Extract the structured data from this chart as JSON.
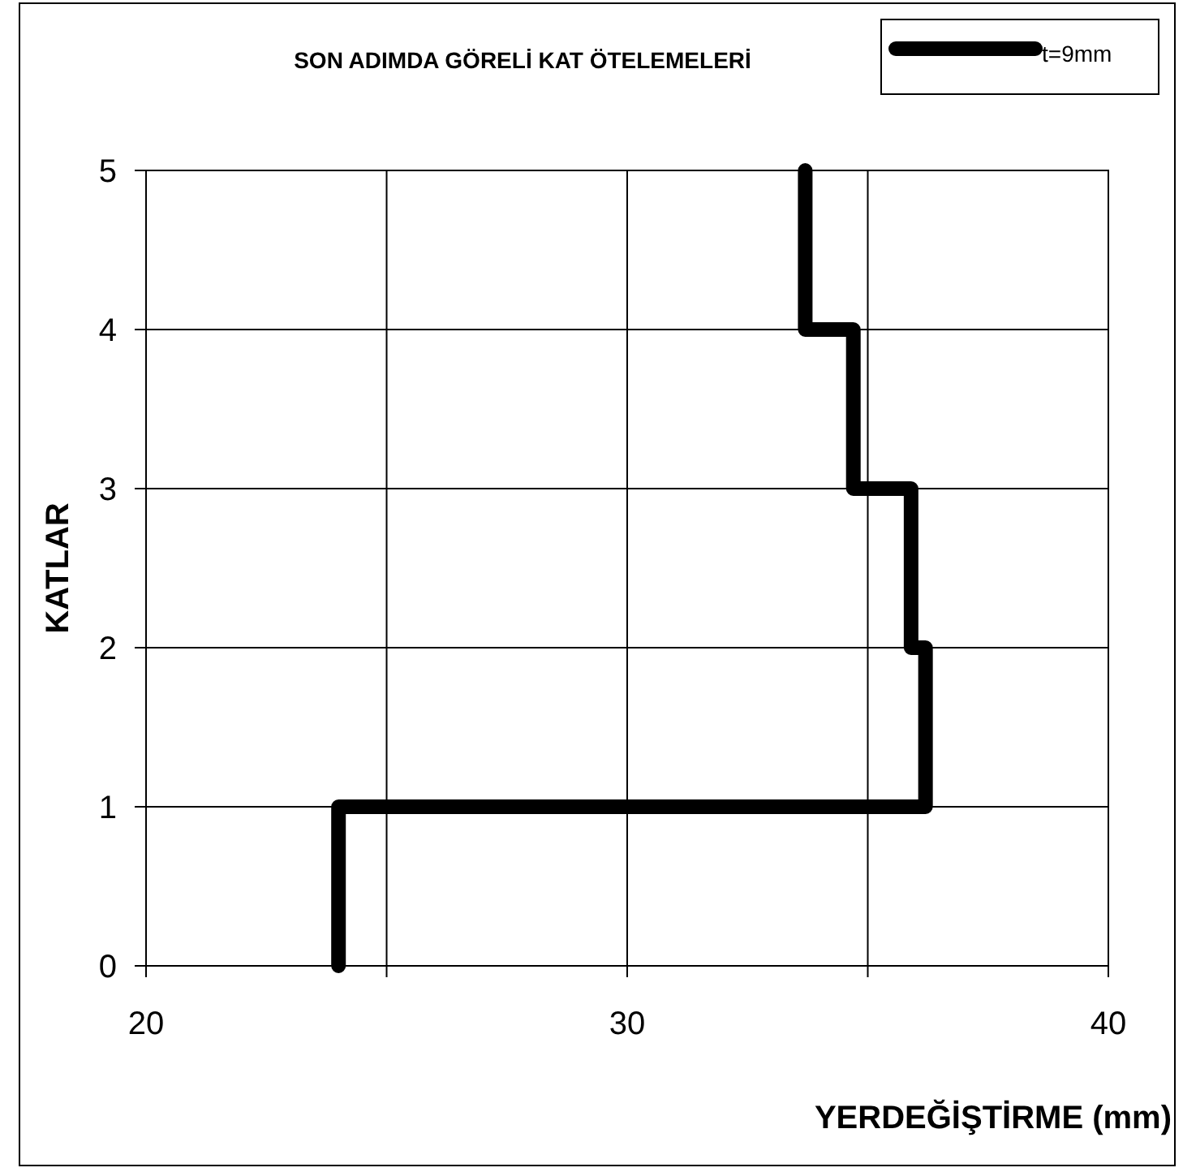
{
  "chart_data": {
    "type": "line",
    "title": "SON ADIMDA GÖRELİ KAT ÖTELEMELERİ",
    "xlabel": "YERDEĞİŞTİRME (mm)",
    "ylabel": "KATLAR",
    "series": [
      {
        "name": "t=9mm",
        "color": "#000000",
        "x": [
          24.0,
          24.0,
          36.2,
          36.2,
          35.9,
          35.9,
          34.7,
          34.7,
          33.7,
          33.7
        ],
        "values": [
          0,
          1,
          1,
          2,
          2,
          3,
          3,
          4,
          4,
          5
        ]
      }
    ],
    "xlim": [
      20,
      40
    ],
    "xticks": [
      20,
      {
        "value": 25,
        "label": null
      },
      30,
      {
        "value": 35,
        "label": null
      },
      40
    ],
    "ylim": [
      0,
      5
    ],
    "yticks": [
      0,
      1,
      2,
      3,
      4,
      5
    ],
    "grid": true,
    "legend": "top right",
    "marker": "none",
    "line_style": "solid"
  }
}
